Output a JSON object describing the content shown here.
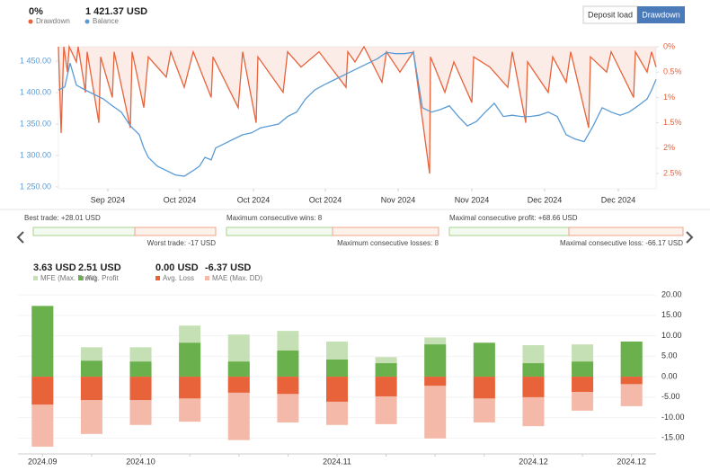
{
  "buttons": [
    "Deposit load",
    "Drawdown"
  ],
  "stats": [
    {
      "top": "Best trade: +28.01 USD",
      "bottom": "Worst trade: -17 USD"
    },
    {
      "top": "Maximum consecutive wins: 8",
      "bottom": "Maximum consecutive losses: 8"
    },
    {
      "top": "Maximal consecutive profit: +68.66 USD",
      "bottom": "Maximal consecutive loss: -66.17 USD"
    }
  ],
  "chart_data": [
    {
      "type": "line",
      "xlim": [
        0,
        665
      ],
      "xticks": [
        {
          "value": 55,
          "label": "Sep 2024"
        },
        {
          "value": 135,
          "label": "Oct 2024"
        },
        {
          "value": 217,
          "label": "Oct 2024"
        },
        {
          "value": 297,
          "label": "Oct 2024"
        },
        {
          "value": 378,
          "label": "Nov 2024"
        },
        {
          "value": 460,
          "label": "Nov 2024"
        },
        {
          "value": 541,
          "label": "Dec 2024"
        },
        {
          "value": 623,
          "label": "Dec 2024"
        }
      ],
      "ylim": [
        1247,
        1473
      ],
      "yticks": [
        {
          "value": 1250,
          "label": "1 250.00"
        },
        {
          "value": 1300,
          "label": "1 300.00"
        },
        {
          "value": 1350,
          "label": "1 350.00"
        },
        {
          "value": 1400,
          "label": "1 400.00"
        },
        {
          "value": 1450,
          "label": "1 450.00"
        }
      ],
      "y2lim": [
        2.8,
        0
      ],
      "y2ticks": [
        {
          "value": 0,
          "label": "0%"
        },
        {
          "value": 0.5,
          "label": "0.5%"
        },
        {
          "value": 1,
          "label": "1%"
        },
        {
          "value": 1.5,
          "label": "1.5%"
        },
        {
          "value": 2,
          "label": "2%"
        },
        {
          "value": 2.5,
          "label": "2.5%"
        }
      ],
      "series": [
        {
          "name": "Balance",
          "summary": "1 421.37 USD",
          "color": "#5b9bd5",
          "axis": "y",
          "x": [
            0,
            7,
            13,
            20,
            30,
            40,
            50,
            60,
            70,
            80,
            90,
            95,
            100,
            110,
            120,
            130,
            140,
            150,
            157,
            163,
            170,
            175,
            185,
            195,
            205,
            215,
            225,
            235,
            245,
            255,
            265,
            275,
            285,
            295,
            305,
            315,
            325,
            335,
            345,
            355,
            365,
            375,
            385,
            395,
            405,
            415,
            425,
            435,
            445,
            455,
            465,
            475,
            485,
            495,
            505,
            515,
            525,
            535,
            545,
            555,
            565,
            575,
            585,
            595,
            605,
            615,
            625,
            635,
            645,
            655,
            660,
            665
          ],
          "values": [
            1404,
            1409,
            1447,
            1412,
            1404,
            1397,
            1390,
            1379,
            1369,
            1347,
            1333,
            1312,
            1297,
            1283,
            1276,
            1269,
            1267,
            1276,
            1283,
            1297,
            1293,
            1312,
            1319,
            1326,
            1333,
            1336,
            1344,
            1347,
            1350,
            1362,
            1369,
            1390,
            1404,
            1412,
            1419,
            1426,
            1433,
            1440,
            1447,
            1454,
            1464,
            1462,
            1462,
            1464,
            1376,
            1369,
            1373,
            1379,
            1362,
            1347,
            1354,
            1369,
            1383,
            1362,
            1364,
            1362,
            1362,
            1364,
            1369,
            1362,
            1333,
            1326,
            1322,
            1347,
            1376,
            1369,
            1364,
            1369,
            1379,
            1390,
            1404,
            1421
          ]
        },
        {
          "name": "Drawdown",
          "summary": "0%",
          "color": "#e8623a",
          "axis": "y2",
          "x": [
            0,
            3,
            6,
            10,
            12,
            20,
            22,
            30,
            32,
            45,
            47,
            60,
            62,
            80,
            82,
            95,
            100,
            120,
            125,
            140,
            150,
            170,
            172,
            200,
            205,
            220,
            222,
            250,
            255,
            270,
            290,
            320,
            322,
            330,
            340,
            360,
            365,
            380,
            395,
            413,
            414,
            430,
            440,
            460,
            462,
            480,
            500,
            505,
            520,
            522,
            545,
            550,
            565,
            570,
            590,
            592,
            610,
            615,
            640,
            642,
            655,
            660,
            665
          ],
          "values": [
            0,
            1.7,
            0,
            0.5,
            0,
            0.3,
            0,
            0.9,
            0.1,
            1.5,
            0.2,
            1.0,
            0.1,
            1.6,
            0.1,
            1.2,
            0.2,
            0.6,
            0.1,
            0.8,
            0.1,
            1.0,
            0.2,
            1.2,
            0.1,
            1.5,
            0.2,
            0.9,
            0.1,
            0.4,
            0.1,
            0.8,
            0.1,
            0.3,
            0,
            0.7,
            0.1,
            0.5,
            0.1,
            2.5,
            0.2,
            0.9,
            0.3,
            1.1,
            0.2,
            0.4,
            0.8,
            0.1,
            1.5,
            0.3,
            0.9,
            0.2,
            0.7,
            0.1,
            1.6,
            0.2,
            0.5,
            0.1,
            1.0,
            0.1,
            0.5,
            0.1,
            0.4
          ]
        }
      ]
    },
    {
      "type": "bar",
      "categories": [
        "2024.09",
        null,
        "2024.10",
        null,
        null,
        null,
        "2024.11",
        null,
        null,
        null,
        "2024.12",
        null,
        "2024.12"
      ],
      "ylim": [
        -18,
        22
      ],
      "yticks": [
        {
          "value": -15,
          "label": "-15.00"
        },
        {
          "value": -10,
          "label": "-10.00"
        },
        {
          "value": -5,
          "label": "-5.00"
        },
        {
          "value": 0,
          "label": "0.00"
        },
        {
          "value": 5,
          "label": "5.00"
        },
        {
          "value": 10,
          "label": "10.00"
        },
        {
          "value": 15,
          "label": "15.00"
        },
        {
          "value": 20,
          "label": "20.00"
        }
      ],
      "series": [
        {
          "name": "MFE (Max. Profit)",
          "summary": "3.63 USD",
          "color": "#c5e0b4",
          "values": [
            17.3,
            7.2,
            7.2,
            12.5,
            10.3,
            11.2,
            8.6,
            4.8,
            9.6,
            8.3,
            7.7,
            7.9,
            8.6
          ]
        },
        {
          "name": "Avg. Profit",
          "summary": "2.51 USD",
          "color": "#6ab04c",
          "values": [
            17.3,
            3.9,
            3.7,
            8.3,
            3.7,
            6.4,
            4.2,
            3.3,
            7.9,
            8.3,
            3.3,
            3.7,
            8.6
          ]
        },
        {
          "name": "Avg. Loss",
          "summary": "0.00 USD",
          "color": "#e8623a",
          "values": [
            -6.8,
            -5.7,
            -5.7,
            -5.3,
            -3.9,
            -4.2,
            -6.1,
            -4.8,
            -2.2,
            -5.3,
            -5.0,
            -3.7,
            -1.8
          ]
        },
        {
          "name": "MAE (Max. DD)",
          "summary": "-6.37 USD",
          "color": "#f4b9a8",
          "values": [
            -17.1,
            -14.0,
            -11.8,
            -11.0,
            -15.5,
            -11.2,
            -11.8,
            -11.6,
            -15.1,
            -11.2,
            -12.1,
            -8.3,
            -7.2
          ]
        }
      ]
    }
  ]
}
